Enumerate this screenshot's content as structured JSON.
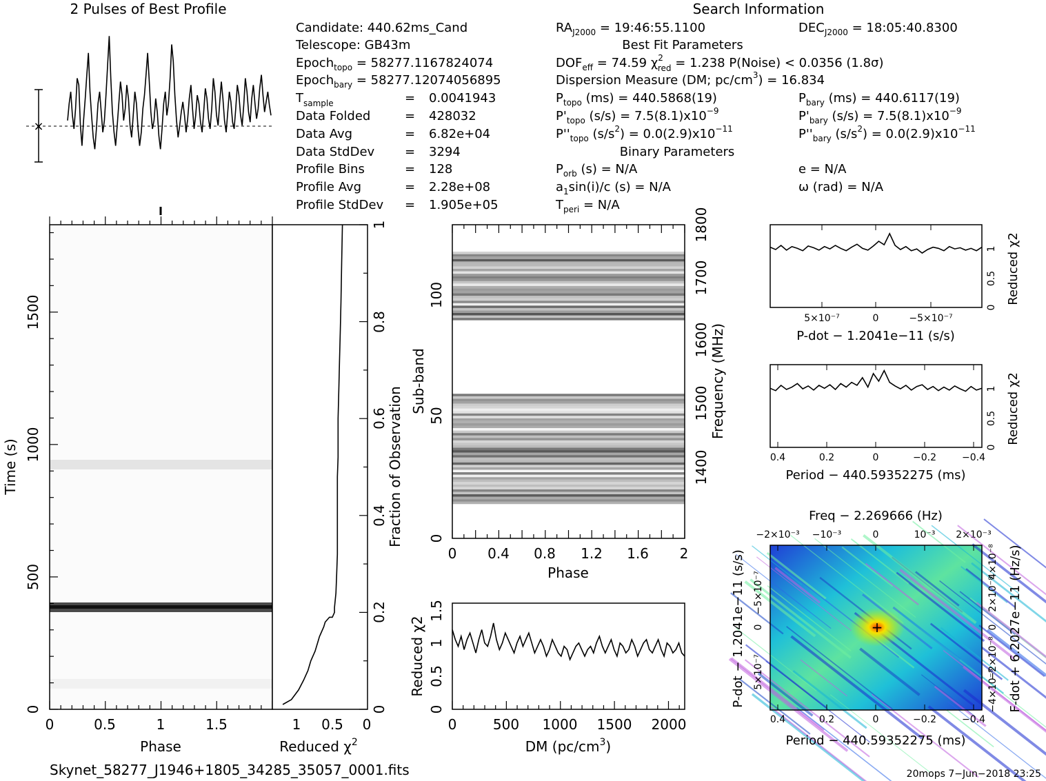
{
  "chart_data": [
    {
      "type": "line",
      "title": "2 Pulses of Best Profile",
      "xlim": [
        0,
        2
      ],
      "description_values": "profile intensity vs phase, 2 pulses, 128 bins each; peaks near phase 0.2, 0.55, 0.75, 1.4, 1.6, 1.9",
      "y": [
        0.45,
        0.55,
        0.62,
        0.48,
        0.4,
        0.52,
        0.7,
        0.66,
        0.42,
        0.3,
        0.45,
        0.58,
        0.72,
        0.85,
        0.62,
        0.48,
        0.35,
        0.28,
        0.4,
        0.55,
        0.62,
        0.5,
        0.38,
        0.45,
        0.6,
        0.78,
        0.95,
        0.7,
        0.5,
        0.38,
        0.3,
        0.42,
        0.55,
        0.68,
        0.6,
        0.45,
        0.52,
        0.66,
        0.58,
        0.42,
        0.35,
        0.48,
        0.62,
        0.55,
        0.4,
        0.3,
        0.38,
        0.52,
        0.6,
        0.72,
        0.85,
        0.68,
        0.5,
        0.4,
        0.45,
        0.58,
        0.5,
        0.36,
        0.28,
        0.4,
        0.55,
        0.62,
        0.48,
        0.55,
        0.7,
        0.9,
        0.8,
        0.6,
        0.45,
        0.35,
        0.42,
        0.5,
        0.56,
        0.48,
        0.38,
        0.46,
        0.58,
        0.66,
        0.52,
        0.4,
        0.48,
        0.6,
        0.55,
        0.44,
        0.38,
        0.5,
        0.64,
        0.58,
        0.46,
        0.4,
        0.52,
        0.7,
        0.62,
        0.48,
        0.42,
        0.56,
        0.68,
        0.58,
        0.45,
        0.38,
        0.5,
        0.62,
        0.56,
        0.44,
        0.4,
        0.52,
        0.66,
        0.6,
        0.48,
        0.42,
        0.54,
        0.7,
        0.62,
        0.5,
        0.44,
        0.58,
        0.66,
        0.55,
        0.46,
        0.52,
        0.64,
        0.72,
        0.6,
        0.5,
        0.56,
        0.62,
        0.54,
        0.48
      ]
    },
    {
      "type": "heatmap",
      "name": "time-phase",
      "xlabel": "Phase",
      "ylabel": "Time (s)",
      "xlim": [
        0,
        2
      ],
      "ylim": [
        0,
        1830
      ],
      "x_ticks": [
        "0",
        "0.5",
        "1",
        "1.5"
      ],
      "y_ticks": [
        "0",
        "500",
        "1000",
        "1500"
      ],
      "bright_rows_s": [
        370,
        900
      ],
      "dark_row_s": 375
    },
    {
      "type": "line",
      "name": "reduced-chi2-vs-fraction",
      "xlabel": "Reduced χ2",
      "ylabel": "Fraction of Observation",
      "x_ticks": [
        "1",
        "0.5",
        "0"
      ],
      "y_ticks": [
        "0",
        "0.2",
        "0.4",
        "0.6",
        "0.8",
        "1"
      ],
      "x": [
        1.17,
        1.05,
        0.95,
        0.88,
        0.82,
        0.78,
        0.72,
        0.68,
        0.66,
        0.63,
        0.6,
        0.58,
        0.52,
        0.48,
        0.45,
        0.45,
        0.43,
        0.42,
        0.41,
        0.41,
        0.41,
        0.41,
        0.41,
        0.4,
        0.4,
        0.4,
        0.39,
        0.38,
        0.37,
        0.36,
        0.35,
        0.34
      ],
      "y": [
        0.01,
        0.02,
        0.04,
        0.06,
        0.08,
        0.1,
        0.12,
        0.14,
        0.15,
        0.16,
        0.17,
        0.18,
        0.19,
        0.19,
        0.2,
        0.21,
        0.24,
        0.28,
        0.32,
        0.36,
        0.4,
        0.44,
        0.48,
        0.52,
        0.56,
        0.6,
        0.66,
        0.72,
        0.78,
        0.84,
        0.92,
        1.0
      ]
    },
    {
      "type": "heatmap",
      "name": "subband-phase",
      "xlabel": "Phase",
      "ylabel": "Sub-band",
      "y2label": "Frequency (MHz)",
      "xlim": [
        0,
        2
      ],
      "ylim": [
        0,
        128
      ],
      "x_ticks": [
        "0",
        "0.4",
        "0.8",
        "1.2",
        "1.6",
        "2"
      ],
      "y_ticks": [
        "0",
        "50",
        "100"
      ],
      "y2_ticks": [
        "1400",
        "1500",
        "1600",
        "1700",
        "1800"
      ],
      "active_bands": [
        [
          14,
          58
        ],
        [
          89,
          116
        ]
      ]
    },
    {
      "type": "line",
      "name": "dm-chi2",
      "xlabel": "DM (pc/cm3)",
      "ylabel": "Reduced χ2",
      "xlim": [
        0,
        2150
      ],
      "ylim": [
        0,
        1.6
      ],
      "x_ticks": [
        "0",
        "500",
        "1000",
        "1500",
        "2000"
      ],
      "y_ticks": [
        "0",
        "0.5",
        "1",
        "1.5"
      ],
      "y": [
        1.2,
        1.05,
        0.95,
        1.1,
        0.9,
        1.05,
        1.15,
        1.0,
        0.85,
        1.05,
        1.2,
        1.0,
        0.95,
        1.1,
        1.3,
        1.05,
        0.9,
        1.0,
        1.15,
        1.05,
        0.95,
        0.85,
        1.0,
        1.1,
        0.95,
        1.05,
        1.15,
        1.0,
        0.85,
        0.95,
        1.05,
        0.95,
        0.8,
        0.9,
        1.05,
        0.95,
        0.85,
        0.8,
        0.95,
        0.9,
        0.75,
        0.85,
        0.95,
        1.0,
        0.9,
        0.8,
        0.9,
        0.95,
        0.85,
        1.0,
        1.1,
        0.95,
        0.85,
        0.95,
        1.05,
        0.9,
        0.8,
        1.0,
        0.95,
        0.85,
        0.9,
        1.05,
        0.95,
        0.8,
        0.9,
        1.0,
        1.05,
        0.9,
        0.85,
        0.95,
        1.05,
        0.9,
        0.8,
        1.0,
        0.95,
        0.85,
        0.9,
        1.0,
        0.85,
        0.8
      ]
    },
    {
      "type": "line",
      "name": "pdot-chi2",
      "xlabel": "P-dot − 1.2041e−11 (s/s)",
      "ylabel": "Reduced χ2",
      "xlim": [
        9.5e-07,
        -9.5e-07
      ],
      "ylim": [
        0,
        1.4
      ],
      "x_ticks": [
        "5×10⁻⁷",
        "0",
        "−5×10⁻⁷"
      ],
      "y_ticks": [
        "0",
        "0.5",
        "1"
      ],
      "y": [
        1.02,
        0.98,
        1.05,
        0.97,
        1.03,
        1.0,
        0.96,
        1.04,
        1.01,
        0.97,
        1.03,
        0.99,
        1.05,
        1.0,
        0.96,
        1.02,
        1.07,
        1.0,
        0.97,
        1.04,
        1.12,
        1.06,
        1.25,
        1.05,
        0.98,
        1.03,
        0.96,
        0.99,
        0.92,
        0.98,
        1.02,
        1.0,
        0.96,
        1.03,
        0.99,
        1.01,
        0.97,
        1.0,
        0.96,
        1.02
      ]
    },
    {
      "type": "line",
      "name": "period-chi2",
      "xlabel": "Period − 440.59352275 (ms)",
      "ylabel": "Reduced χ2",
      "xlim": [
        0.43,
        -0.43
      ],
      "ylim": [
        0,
        1.4
      ],
      "x_ticks": [
        "0.4",
        "0.2",
        "0",
        "−0.2",
        "−0.4"
      ],
      "y_ticks": [
        "0",
        "0.5",
        "1"
      ],
      "y": [
        1.0,
        0.96,
        1.05,
        0.98,
        1.02,
        1.08,
        0.99,
        1.04,
        0.97,
        1.05,
        1.0,
        1.06,
        0.98,
        1.08,
        1.02,
        1.1,
        1.05,
        1.18,
        1.02,
        1.25,
        1.12,
        1.3,
        1.1,
        1.04,
        0.99,
        1.05,
        0.97,
        1.03,
        1.06,
        0.98,
        1.03,
        0.96,
        1.02,
        0.97,
        1.04,
        0.99,
        0.95,
        1.03,
        0.97,
        1.0
      ]
    },
    {
      "type": "heatmap",
      "name": "period-pdot",
      "title": "Freq − 2.269666 (Hz)",
      "xlabel": "Period − 440.59352275 (ms)",
      "ylabel": "P-dot − 1.2041e−11 (s/s)",
      "y2label": "F-dot + 6.2027e−11 (Hz/s)",
      "x_ticks": [
        "0.4",
        "0.2",
        "0",
        "−0.2",
        "−0.4"
      ],
      "top_ticks": [
        "−2×10⁻³",
        "−10⁻³",
        "0",
        "10⁻³",
        "2×10⁻³"
      ],
      "y_ticks": [
        "−5×10⁻⁷",
        "0",
        "5×10⁻⁷"
      ],
      "y2_ticks": [
        "−4×10⁻⁸",
        "−2×10⁻⁸",
        "0",
        "2×10⁻⁸",
        "4×10⁻⁸"
      ],
      "best_point": [
        0,
        0
      ]
    }
  ],
  "header": {
    "title_right": "Search Information",
    "best_fit_title": "Best Fit Parameters",
    "binary_title": "Binary Parameters"
  },
  "params": {
    "candidate": "Candidate:  440.62ms_Cand",
    "telescope": "Telescope:  GB43m",
    "epoch_topo_a": "Epoch",
    "epoch_topo_sub": "topo",
    "epoch_topo_b": " = 58277.1167824074",
    "epoch_bary_a": "Epoch",
    "epoch_bary_sub": "bary",
    "epoch_bary_b": " = 58277.12074056895",
    "tsample_a": "T",
    "tsample_sub": "sample",
    "tsample_eq": "=",
    "tsample_v": "0.0041943",
    "folded_l": "Data Folded",
    "folded_eq": "=",
    "folded_v": "428032",
    "avg_l": "Data Avg",
    "avg_eq": "=",
    "avg_v": "6.82e+04",
    "std_l": "Data StdDev",
    "std_eq": "=",
    "std_v": "3294",
    "bins_l": "Profile Bins",
    "bins_eq": "=",
    "bins_v": "128",
    "pavg_l": "Profile Avg",
    "pavg_eq": "=",
    "pavg_v": "2.28e+08",
    "pstd_l": "Profile StdDev",
    "pstd_eq": "=",
    "pstd_v": "1.905e+05"
  },
  "search": {
    "ra_a": "RA",
    "ra_sub": "J2000",
    "ra_b": " = 19:46:55.1100",
    "dec_a": "DEC",
    "dec_sub": "J2000",
    "dec_b": " = 18:05:40.8300",
    "dof_a": "DOF",
    "dof_sub": "eff",
    "dof_b": " = 74.59  χ",
    "chi_sup": "2",
    "chi_sub": "red",
    "chi_b": " = 1.238  P(Noise) < 0.0356  (1.8σ)",
    "dm_a": "Dispersion Measure (DM; pc/cm",
    "dm_sup": "3",
    "dm_b": ") = 16.834",
    "ptopo_a": "P",
    "ptopo_sub": "topo",
    "ptopo_b": " (ms) =  440.5868(19)",
    "pbary_a": "P",
    "pbary_sub": "bary",
    "pbary_b": " (ms) =  440.6117(19)",
    "pdtopo_a": "P'",
    "pdtopo_sub": "topo",
    "pdtopo_b": " (s/s) =  7.5(8.1)x10",
    "pdtopo_exp": "−9",
    "pdbary_a": "P'",
    "pdbary_sub": "bary",
    "pdbary_b": " (s/s) =  7.5(8.1)x10",
    "pdbary_exp": "−9",
    "pddtopo_a": "P''",
    "pddtopo_sub": "topo",
    "pddtopo_b": " (s/s",
    "pddtopo_sup": "2",
    "pddtopo_c": ") = 0.0(2.9)x10",
    "pddtopo_exp": "−11",
    "pddbary_a": "P''",
    "pddbary_sub": "bary",
    "pddbary_b": " (s/s",
    "pddbary_sup": "2",
    "pddbary_c": ") = 0.0(2.9)x10",
    "pddbary_exp": "−11",
    "porb_a": "P",
    "porb_sub": "orb",
    "porb_b": " (s) = N/A",
    "e": "e = N/A",
    "a1_a": "a",
    "a1_sub": "1",
    "a1_b": "sin(i)/c (s) = N/A",
    "omega": "ω (rad) = N/A",
    "tperi_a": "T",
    "tperi_sub": "peri",
    "tperi_b": " = N/A"
  },
  "footer": {
    "filename": "Skynet_58277_J1946+1805_34285_35057_0001.fits",
    "stamp": "20mops  7−Jun−2018 23:25"
  },
  "labels": {
    "tp_xlabel": "Phase",
    "tp_ylabel": "Time (s)",
    "chi_xlabel_a": "Reduced χ",
    "chi_xlabel_sup": "2",
    "chi_ylabel": "Fraction of Observation",
    "sb_xlabel": "Phase",
    "sb_ylabel": "Sub-band",
    "sb_y2label": "Frequency (MHz)",
    "dm_xlabel_a": "DM (pc/cm",
    "dm_xlabel_sup": "3",
    "dm_xlabel_b": ")",
    "dm_ylabel": "Reduced χ2",
    "pd_xlabel": "P-dot − 1.2041e−11 (s/s)",
    "pd_ylabel": "Reduced χ2",
    "per_xlabel": "Period − 440.59352275 (ms)",
    "per_ylabel": "Reduced χ2",
    "pp_title": "Freq − 2.269666 (Hz)",
    "pp_xlabel": "Period − 440.59352275 (ms)",
    "pp_ylabel": "P-dot − 1.2041e−11 (s/s)",
    "pp_y2label": "F-dot + 6.2027e−11 (Hz/s)"
  }
}
